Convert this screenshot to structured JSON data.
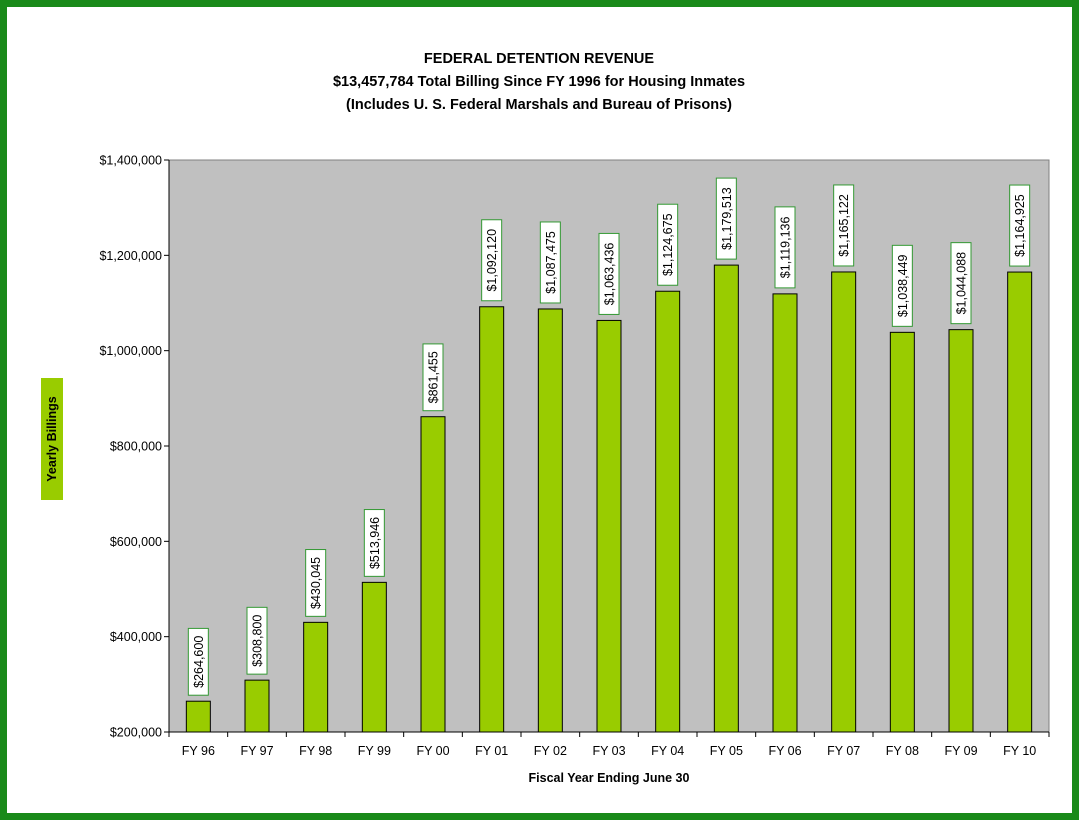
{
  "chart_data": {
    "type": "bar",
    "title": [
      "FEDERAL DETENTION REVENUE",
      "$13,457,784 Total Billing Since FY 1996 for Housing Inmates",
      "(Includes U. S. Federal Marshals and Bureau of Prisons)"
    ],
    "xlabel": "Fiscal Year Ending June 30",
    "ylabel": "Yearly Billings",
    "categories": [
      "FY 96",
      "FY 97",
      "FY 98",
      "FY 99",
      "FY 00",
      "FY 01",
      "FY 02",
      "FY 03",
      "FY 04",
      "FY 05",
      "FY 06",
      "FY 07",
      "FY 08",
      "FY 09",
      "FY 10"
    ],
    "values": [
      264600,
      308800,
      430045,
      513946,
      861455,
      1092120,
      1087475,
      1063436,
      1124675,
      1179513,
      1119136,
      1165122,
      1038449,
      1044088,
      1164925
    ],
    "data_labels": [
      "$264,600",
      "$308,800",
      "$430,045",
      "$513,946",
      "$861,455",
      "$1,092,120",
      "$1,087,475",
      "$1,063,436",
      "$1,124,675",
      "$1,179,513",
      "$1,119,136",
      "$1,165,122",
      "$1,038,449",
      "$1,044,088",
      "$1,164,925"
    ],
    "ylim": [
      200000,
      1400000
    ],
    "yticks": [
      200000,
      400000,
      600000,
      800000,
      1000000,
      1200000,
      1400000
    ],
    "ytick_labels": [
      "$200,000",
      "$400,000",
      "$600,000",
      "$800,000",
      "$1,000,000",
      "$1,200,000",
      "$1,400,000"
    ],
    "grid": false,
    "legend": "none",
    "colors": {
      "bar": "#99cc00",
      "plot_background": "#c0c0c0",
      "frame": "#1a8a1a",
      "label_border": "#339933",
      "ylabel_background": "#99cc00"
    }
  }
}
